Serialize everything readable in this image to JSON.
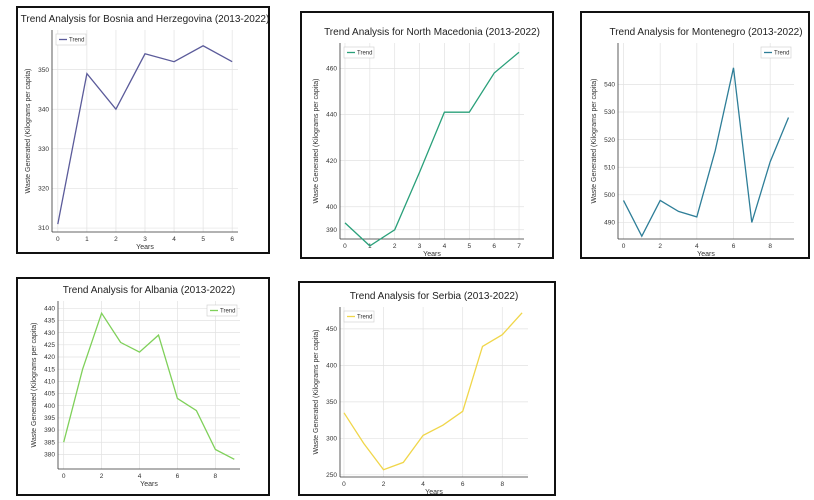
{
  "chart_data": [
    {
      "type": "line",
      "title": "Trend Analysis for Bosnia and Herzegovina (2013-2022)",
      "xlabel": "Years",
      "ylabel": "Waste Generated (Kilograms per capita)",
      "legend": "Trend",
      "legend_position": "top-left",
      "color": "#5b5b9a",
      "grid": true,
      "xlim": [
        -0.2,
        6.2
      ],
      "ylim": [
        309,
        360
      ],
      "xticks": [
        0,
        1,
        2,
        3,
        4,
        5,
        6
      ],
      "yticks": [
        310,
        320,
        330,
        340,
        350
      ],
      "x": [
        0,
        1,
        2,
        3,
        4,
        5,
        6
      ],
      "y": [
        311,
        349,
        340,
        354,
        352,
        356,
        352
      ]
    },
    {
      "type": "line",
      "title": "Trend Analysis for North Macedonia (2013-2022)",
      "xlabel": "Years",
      "ylabel": "Waste Generated (Kilograms per capita)",
      "legend": "Trend",
      "legend_position": "top-left",
      "color": "#2aa07a",
      "grid": true,
      "xlim": [
        -0.2,
        7.2
      ],
      "ylim": [
        386,
        471
      ],
      "xticks": [
        0,
        1,
        2,
        3,
        4,
        5,
        6,
        7
      ],
      "yticks": [
        390,
        400,
        420,
        440,
        460
      ],
      "x": [
        0,
        1,
        2,
        3,
        4,
        5,
        6,
        7
      ],
      "y": [
        393,
        383,
        390,
        415,
        441,
        441,
        458,
        467
      ]
    },
    {
      "type": "line",
      "title": "Trend Analysis for Montenegro (2013-2022)",
      "xlabel": "Years",
      "ylabel": "Waste Generated (Kilograms per capita)",
      "legend": "Trend",
      "legend_position": "top-right",
      "color": "#2e7e98",
      "grid": true,
      "xlim": [
        -0.3,
        9.3
      ],
      "ylim": [
        484,
        555
      ],
      "xticks": [
        0,
        2,
        4,
        6,
        8
      ],
      "yticks": [
        490,
        500,
        510,
        520,
        530,
        540
      ],
      "x": [
        0,
        1,
        2,
        3,
        4,
        5,
        6,
        7,
        8,
        9
      ],
      "y": [
        498,
        485,
        498,
        494,
        492,
        516,
        546,
        490,
        512,
        528
      ]
    },
    {
      "type": "line",
      "title": "Trend Analysis for Albania (2013-2022)",
      "xlabel": "Years",
      "ylabel": "Waste Generated (Kilograms per capita)",
      "legend": "Trend",
      "legend_position": "top-right",
      "color": "#7fd05a",
      "grid": true,
      "xlim": [
        -0.3,
        9.3
      ],
      "ylim": [
        374,
        443
      ],
      "xticks": [
        0,
        2,
        4,
        6,
        8
      ],
      "yticks": [
        380,
        385,
        390,
        395,
        400,
        405,
        410,
        415,
        420,
        425,
        430,
        435,
        440
      ],
      "x": [
        0,
        1,
        2,
        3,
        4,
        5,
        6,
        7,
        8,
        9
      ],
      "y": [
        385,
        415,
        438,
        426,
        422,
        429,
        403,
        398,
        382,
        378
      ]
    },
    {
      "type": "line",
      "title": "Trend Analysis for Serbia (2013-2022)",
      "xlabel": "Years",
      "ylabel": "Waste Generated (Kilograms per capita)",
      "legend": "Trend",
      "legend_position": "top-left",
      "color": "#f0d64a",
      "grid": true,
      "xlim": [
        -0.2,
        9.3
      ],
      "ylim": [
        247,
        480
      ],
      "xticks": [
        0,
        2,
        4,
        6,
        8
      ],
      "yticks": [
        250,
        300,
        350,
        400,
        450
      ],
      "x": [
        0,
        1,
        2,
        3,
        4,
        5,
        6,
        7,
        8,
        9
      ],
      "y": [
        335,
        293,
        257,
        267,
        304,
        318,
        337,
        426,
        442,
        472
      ]
    }
  ]
}
